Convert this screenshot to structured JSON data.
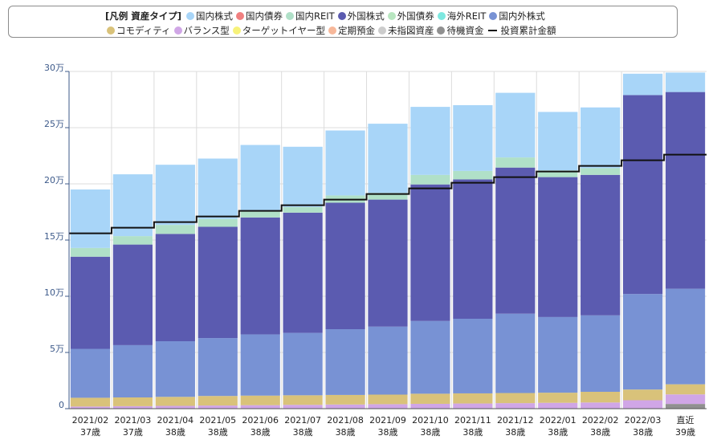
{
  "legend": {
    "title": "[凡例 資産タイプ]",
    "row1": [
      {
        "key": "domestic_stock",
        "label": "国内株式"
      },
      {
        "key": "domestic_bond",
        "label": "国内債券"
      },
      {
        "key": "domestic_reit",
        "label": "国内REIT"
      },
      {
        "key": "foreign_stock",
        "label": "外国株式"
      },
      {
        "key": "foreign_bond",
        "label": "外国債券"
      },
      {
        "key": "overseas_reit",
        "label": "海外REIT"
      },
      {
        "key": "domestic_foreign_stock",
        "label": "国内外株式"
      }
    ],
    "row2": [
      {
        "key": "commodity",
        "label": "コモディティ"
      },
      {
        "key": "balanced",
        "label": "バランス型"
      },
      {
        "key": "target_year",
        "label": "ターゲットイヤー型"
      },
      {
        "key": "time_deposit",
        "label": "定期預金"
      },
      {
        "key": "unspecified",
        "label": "未指図資産"
      },
      {
        "key": "standby",
        "label": "待機資金"
      }
    ],
    "line_label": "投資累計金額"
  },
  "colors": {
    "domestic_stock": "#a8d5f8",
    "domestic_bond": "#f08080",
    "domestic_reit": "#b0e0c8",
    "foreign_stock": "#5b5bb0",
    "foreign_bond": "#b8e6c0",
    "overseas_reit": "#7ee8e0",
    "domestic_foreign_stock": "#7892d4",
    "commodity": "#d9c27a",
    "balanced": "#d0a6e6",
    "target_year": "#f7f27a",
    "time_deposit": "#f7b89a",
    "unspecified": "#cccccc",
    "standby": "#909090",
    "cumulative_line": "#111111",
    "grid": "#dcdcdc",
    "tick": "#3d5a8a"
  },
  "chart_data": {
    "type": "bar",
    "stacked": true,
    "categories": [
      {
        "date": "2021/02",
        "age": "37歳"
      },
      {
        "date": "2021/03",
        "age": "37歳"
      },
      {
        "date": "2021/04",
        "age": "38歳"
      },
      {
        "date": "2021/05",
        "age": "38歳"
      },
      {
        "date": "2021/06",
        "age": "38歳"
      },
      {
        "date": "2021/07",
        "age": "38歳"
      },
      {
        "date": "2021/08",
        "age": "38歳"
      },
      {
        "date": "2021/09",
        "age": "38歳"
      },
      {
        "date": "2021/10",
        "age": "38歳"
      },
      {
        "date": "2021/11",
        "age": "38歳"
      },
      {
        "date": "2021/12",
        "age": "38歳"
      },
      {
        "date": "2022/01",
        "age": "38歳"
      },
      {
        "date": "2022/02",
        "age": "38歳"
      },
      {
        "date": "2022/03",
        "age": "38歳"
      },
      {
        "date": "直近",
        "age": "39歳"
      }
    ],
    "series": [
      {
        "key": "standby",
        "name": "待機資金",
        "values": [
          0,
          0,
          0,
          0,
          0,
          0,
          0,
          0,
          0,
          0,
          0,
          0,
          0,
          0,
          4200
        ]
      },
      {
        "key": "balanced",
        "name": "バランス型",
        "values": [
          1900,
          2200,
          2500,
          2800,
          3100,
          3400,
          3700,
          4000,
          4300,
          4600,
          4900,
          5200,
          5500,
          7500,
          8500
        ]
      },
      {
        "key": "commodity",
        "name": "コモディティ",
        "values": [
          7800,
          7800,
          8000,
          8500,
          8500,
          8500,
          8500,
          8500,
          9000,
          9000,
          9000,
          9000,
          9500,
          9500,
          9000
        ]
      },
      {
        "key": "domestic_foreign_stock",
        "name": "国内外株式",
        "values": [
          43500,
          46500,
          49500,
          51500,
          54500,
          55500,
          58500,
          60500,
          64700,
          66400,
          70600,
          67300,
          68000,
          85000,
          85000
        ]
      },
      {
        "key": "foreign_stock",
        "name": "外国株式",
        "values": [
          82000,
          89500,
          95500,
          99000,
          104000,
          107000,
          112500,
          113000,
          121500,
          124000,
          130000,
          124500,
          125000,
          177000,
          175000
        ]
      },
      {
        "key": "domestic_reit",
        "name": "国内REIT",
        "values": [
          7800,
          7500,
          8000,
          7000,
          5500,
          5000,
          6500,
          6000,
          8500,
          7500,
          9000,
          6000,
          6000,
          0,
          0
        ]
      },
      {
        "key": "domestic_stock",
        "name": "国内株式",
        "values": [
          52000,
          55000,
          53500,
          53700,
          59000,
          53600,
          57800,
          61500,
          60500,
          58500,
          57500,
          52000,
          54000,
          19000,
          17300
        ]
      }
    ],
    "line": {
      "name": "投資累計金額",
      "values": [
        156000,
        161000,
        166000,
        171000,
        176000,
        181000,
        186000,
        191000,
        196000,
        201000,
        206000,
        211000,
        216000,
        221000,
        226000
      ]
    },
    "y_ticks": [
      "0",
      "5万",
      "10万",
      "15万",
      "20万",
      "25万",
      "30万"
    ],
    "ylim": [
      0,
      300000
    ],
    "grid": true,
    "legend_position": "top"
  }
}
